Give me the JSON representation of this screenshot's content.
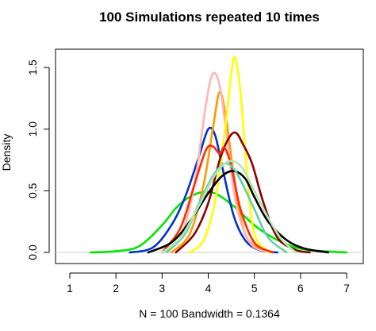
{
  "chart_data": {
    "type": "line",
    "title": "100 Simulations repeated 10 times",
    "xlabel": "N = 100   Bandwidth = 0.1364",
    "ylabel": "Density",
    "xlim": [
      1,
      7
    ],
    "ylim": [
      0,
      1.6
    ],
    "grid": false,
    "x_ticks": [
      "1",
      "2",
      "3",
      "4",
      "5",
      "6",
      "7"
    ],
    "y_ticks": [
      "0.0",
      "0.5",
      "1.0",
      "1.5"
    ],
    "y_tick_values": [
      0,
      0.5,
      1.0,
      1.5
    ],
    "baseline_color": "#cccccc",
    "series": [
      {
        "color": "#00e600",
        "x": [
          1.45,
          2.0,
          2.5,
          3.0,
          3.3,
          3.6,
          3.9,
          4.2,
          4.6,
          5.0,
          5.5,
          6.0,
          6.5,
          7.0
        ],
        "y": [
          0.0,
          0.01,
          0.05,
          0.22,
          0.36,
          0.45,
          0.49,
          0.47,
          0.36,
          0.22,
          0.1,
          0.03,
          0.01,
          0.0
        ]
      },
      {
        "color": "#0033cc",
        "x": [
          2.3,
          2.8,
          3.2,
          3.5,
          3.8,
          4.0,
          4.15,
          4.3,
          4.55,
          4.8,
          5.1,
          5.5
        ],
        "y": [
          0.0,
          0.04,
          0.22,
          0.45,
          0.78,
          1.0,
          0.95,
          0.7,
          0.3,
          0.1,
          0.02,
          0.0
        ]
      },
      {
        "color": "#ff9900",
        "x": [
          3.2,
          3.6,
          3.9,
          4.1,
          4.25,
          4.4,
          4.6,
          4.8,
          5.1,
          5.4
        ],
        "y": [
          0.0,
          0.15,
          0.55,
          1.0,
          1.3,
          1.05,
          0.5,
          0.15,
          0.03,
          0.0
        ]
      },
      {
        "color": "#ffb3b3",
        "x": [
          3.0,
          3.4,
          3.7,
          3.95,
          4.1,
          4.25,
          4.4,
          4.6,
          4.9,
          5.3
        ],
        "y": [
          0.0,
          0.12,
          0.55,
          1.2,
          1.45,
          1.35,
          0.95,
          0.4,
          0.08,
          0.0
        ]
      },
      {
        "color": "#ffff00",
        "x": [
          3.6,
          3.9,
          4.15,
          4.35,
          4.5,
          4.58,
          4.7,
          4.85,
          5.0,
          5.3
        ],
        "y": [
          0.0,
          0.1,
          0.42,
          0.95,
          1.45,
          1.58,
          1.3,
          0.6,
          0.15,
          0.0
        ]
      },
      {
        "color": "#8b0000",
        "x": [
          3.3,
          3.7,
          4.0,
          4.25,
          4.45,
          4.6,
          4.75,
          4.95,
          5.2,
          5.5,
          5.9,
          6.2
        ],
        "y": [
          0.0,
          0.15,
          0.4,
          0.75,
          0.93,
          0.97,
          0.88,
          0.72,
          0.4,
          0.12,
          0.02,
          0.0
        ]
      },
      {
        "color": "#ff2a00",
        "x": [
          3.0,
          3.4,
          3.7,
          3.95,
          4.1,
          4.25,
          4.35,
          4.5,
          4.7,
          5.0,
          5.4
        ],
        "y": [
          0.0,
          0.2,
          0.55,
          0.83,
          0.86,
          0.8,
          0.85,
          0.7,
          0.35,
          0.08,
          0.0
        ]
      },
      {
        "color": "#000000",
        "x": [
          2.7,
          3.2,
          3.6,
          4.0,
          4.3,
          4.55,
          4.8,
          5.0,
          5.3,
          5.7,
          6.1,
          6.6
        ],
        "y": [
          0.0,
          0.08,
          0.25,
          0.48,
          0.62,
          0.66,
          0.6,
          0.45,
          0.25,
          0.1,
          0.03,
          0.0
        ]
      },
      {
        "color": "#66ccaa",
        "x": [
          3.1,
          3.5,
          3.8,
          4.1,
          4.35,
          4.55,
          4.75,
          5.0,
          5.3,
          5.7
        ],
        "y": [
          0.0,
          0.15,
          0.4,
          0.62,
          0.72,
          0.68,
          0.55,
          0.35,
          0.12,
          0.0
        ]
      },
      {
        "color": "#b3e6b3",
        "x": [
          3.0,
          3.4,
          3.8,
          4.1,
          4.35,
          4.55,
          4.75,
          5.0,
          5.3,
          5.6,
          5.9
        ],
        "y": [
          0.0,
          0.12,
          0.38,
          0.6,
          0.72,
          0.74,
          0.68,
          0.5,
          0.28,
          0.1,
          0.0
        ]
      }
    ]
  }
}
